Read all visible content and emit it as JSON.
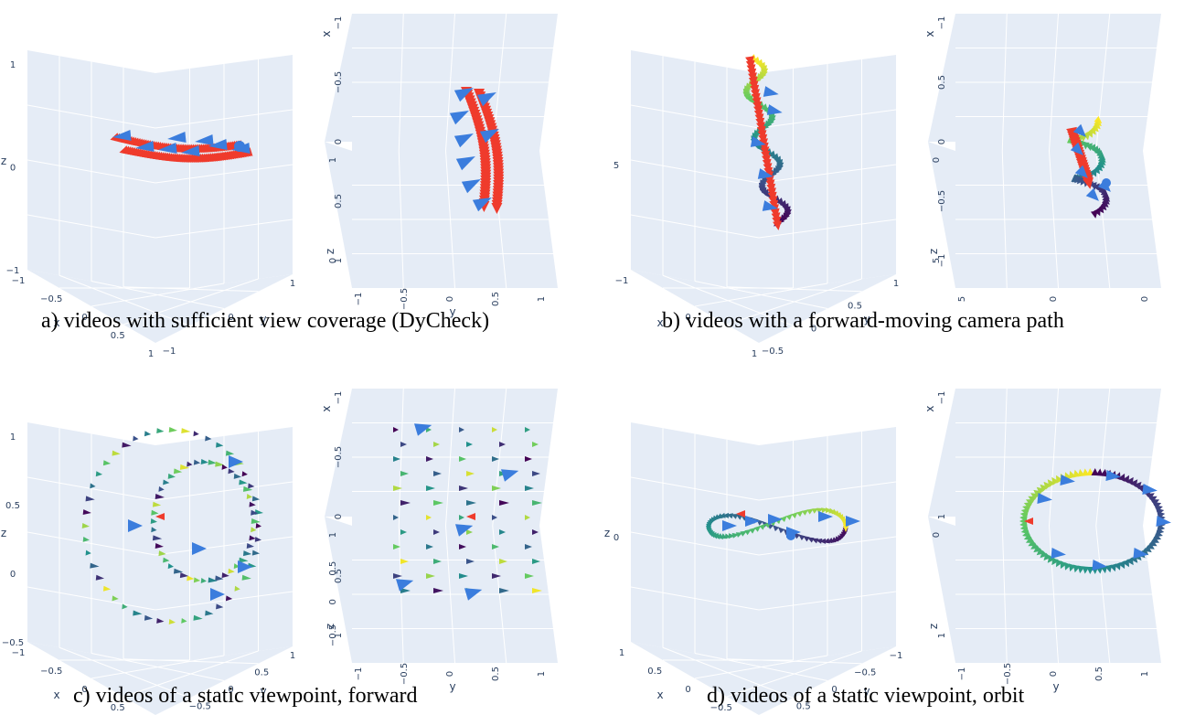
{
  "panels": [
    {
      "id": "a",
      "caption": "a) videos with sufficient view coverage (DyCheck)",
      "views": [
        {
          "axes": {
            "z_label": "z",
            "z_ticks": [
              "1",
              "0",
              "−1"
            ],
            "x_label": "x",
            "x_ticks": [
              "−1",
              "−0.5",
              "0",
              "0.5",
              "1"
            ],
            "y_label": "y",
            "y_ticks": [
              "1",
              "0",
              "−1"
            ]
          }
        },
        {
          "axes": {
            "x_label": "x",
            "x_ticks": [
              "−1",
              "−0.5",
              "0",
              "0.5",
              "1"
            ],
            "z_label": "z",
            "z_ticks": [
              "1",
              "0"
            ],
            "y_label": "y",
            "y_ticks": [
              "−1",
              "−0.5",
              "0",
              "0.5",
              "1"
            ]
          }
        }
      ]
    },
    {
      "id": "b",
      "caption": "b) videos with a forward-moving camera path",
      "views": [
        {
          "axes": {
            "z_label": "",
            "z_ticks": [
              "5"
            ],
            "x_label": "x",
            "x_ticks": [
              "−1",
              "0",
              "1"
            ],
            "y_label": "y",
            "y_ticks": [
              "1",
              "0.5",
              "0",
              "−0.5"
            ]
          }
        },
        {
          "axes": {
            "z_label": "z",
            "z_ticks": [
              "0",
              "5"
            ],
            "x_label": "x",
            "x_ticks": [
              "−1",
              "0.5",
              "0",
              "−0.5",
              "−1"
            ],
            "y_label": "",
            "y_ticks": [
              "5",
              "0",
              "0"
            ]
          }
        }
      ]
    },
    {
      "id": "c",
      "caption": "c) videos of a static viewpoint, forward",
      "views": [
        {
          "axes": {
            "z_label": "z",
            "z_ticks": [
              "1",
              "0.5",
              "0",
              "−0.5"
            ],
            "x_label": "x",
            "x_ticks": [
              "−1",
              "−0.5",
              "0",
              "0.5",
              "1"
            ],
            "y_label": "y",
            "y_ticks": [
              "1",
              "0.5",
              "0",
              "−0.5",
              "−1"
            ]
          }
        },
        {
          "axes": {
            "x_label": "x",
            "x_ticks": [
              "−1",
              "−0.5",
              "0",
              "0.5",
              "1"
            ],
            "z_label": "z",
            "z_ticks": [
              "1",
              "0.5",
              "0",
              "−0.5"
            ],
            "y_label": "y",
            "y_ticks": [
              "−1",
              "−0.5",
              "0",
              "0.5",
              "1"
            ]
          }
        }
      ]
    },
    {
      "id": "d",
      "caption": "d) videos of a static viewpoint, orbit",
      "views": [
        {
          "axes": {
            "z_label": "z",
            "z_ticks": [
              "0"
            ],
            "y_label": "y",
            "y_ticks": [
              "−1",
              "−0.5",
              "0",
              "0.5",
              "1"
            ],
            "x_label": "x",
            "x_ticks": [
              "1",
              "0.5",
              "0",
              "−0.5",
              "−1"
            ]
          }
        },
        {
          "axes": {
            "x_label": "x",
            "x_ticks": [
              "−1",
              "1",
              "1"
            ],
            "z_label": "z",
            "z_ticks": [
              "0"
            ],
            "y_label": "y",
            "y_ticks": [
              "−1",
              "−0.5",
              "0",
              "0.5",
              "1"
            ]
          }
        }
      ]
    }
  ],
  "colors": {
    "scene_bg": "#e5ecf6",
    "grid": "#ffffff",
    "axis_text": "#2a3f5f",
    "camera_red": "#ef3b2c",
    "camera_blue": "#3b7ddd",
    "viridis": [
      "#440154",
      "#3b528b",
      "#21918c",
      "#5ec962",
      "#fde725"
    ]
  }
}
